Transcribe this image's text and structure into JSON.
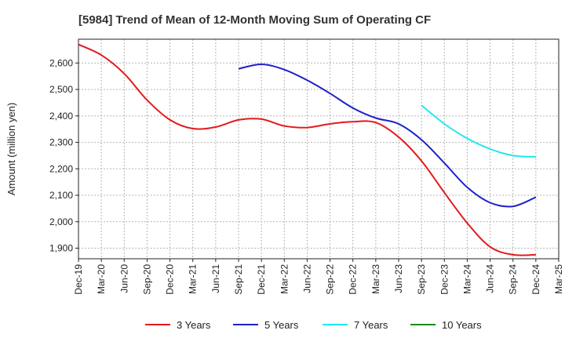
{
  "chart_data": {
    "type": "line",
    "title": "[5984]  Trend of Mean of 12-Month Moving Sum of Operating CF",
    "xlabel": "",
    "ylabel": "Amount (million yen)",
    "ylim": [
      1860,
      2690
    ],
    "yticks": [
      1900,
      2000,
      2100,
      2200,
      2300,
      2400,
      2500,
      2600
    ],
    "ytick_labels": [
      "1,900",
      "2,000",
      "2,100",
      "2,200",
      "2,300",
      "2,400",
      "2,500",
      "2,600"
    ],
    "xtick_labels": [
      "Dec-19",
      "Mar-20",
      "Jun-20",
      "Sep-20",
      "Dec-20",
      "Mar-21",
      "Jun-21",
      "Sep-21",
      "Dec-21",
      "Mar-22",
      "Jun-22",
      "Sep-22",
      "Dec-22",
      "Mar-23",
      "Jun-23",
      "Sep-23",
      "Dec-23",
      "Mar-24",
      "Jun-24",
      "Sep-24",
      "Dec-24",
      "Mar-25"
    ],
    "grid": true,
    "legend_position": "bottom",
    "series": [
      {
        "name": "3 Years",
        "color": "#e31a1c",
        "start_index": 0,
        "values": [
          2670,
          2630,
          2560,
          2460,
          2385,
          2352,
          2358,
          2385,
          2388,
          2362,
          2356,
          2370,
          2378,
          2375,
          2320,
          2230,
          2110,
          1995,
          1905,
          1875,
          1875
        ]
      },
      {
        "name": "5 Years",
        "color": "#1f1fc8",
        "start_index": 7,
        "values": [
          2578,
          2595,
          2575,
          2535,
          2485,
          2430,
          2392,
          2370,
          2310,
          2222,
          2130,
          2072,
          2058,
          2093
        ]
      },
      {
        "name": "7 Years",
        "color": "#22e8f0",
        "start_index": 15,
        "values": [
          2440,
          2370,
          2315,
          2275,
          2250,
          2245
        ]
      },
      {
        "name": "10 Years",
        "color": "#1a8a1a",
        "start_index": 0,
        "values": []
      }
    ]
  }
}
